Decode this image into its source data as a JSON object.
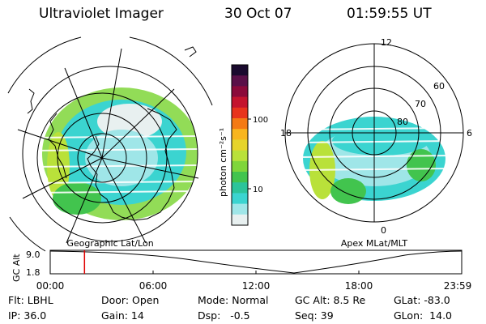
{
  "header": {
    "instrument": "Ultraviolet Imager",
    "date": "30 Oct 07",
    "time": "01:59:55 UT"
  },
  "left_panel": {
    "caption": "Geographic Lat/Lon"
  },
  "right_panel": {
    "caption": "Apex MLat/MLT",
    "mlt_labels": {
      "top": "12",
      "bottom": "0",
      "left": "18",
      "right": "6"
    },
    "lat_labels": [
      "60",
      "70",
      "80"
    ]
  },
  "colorbar": {
    "unit_label": "photon cm⁻²s⁻¹",
    "ticks": [
      "100",
      "10"
    ],
    "colors": [
      "#1a0a2e",
      "#5a1048",
      "#8b0a3a",
      "#c4142e",
      "#e8341c",
      "#f47a14",
      "#f8b51e",
      "#e6d42a",
      "#b9e13a",
      "#7fd63a",
      "#42c44e",
      "#2cc49a",
      "#3bd4d0",
      "#9fe6e8",
      "#e8f0f0"
    ]
  },
  "altitude_strip": {
    "axis_label": "GC Alt",
    "y_ticks": [
      "9.0",
      "1.8"
    ],
    "x_ticks": [
      "00:00",
      "06:00",
      "12:00",
      "18:00",
      "23:59"
    ],
    "current_time_fraction": 0.0833
  },
  "info": {
    "flt": "Flt: LBHL",
    "ip": "IP: 36.0",
    "door": "Door: Open",
    "gain": "Gain: 14",
    "mode": "Mode: Normal",
    "dsp": "Dsp:   -0.5",
    "gcalt": "GC Alt: 8.5 Re",
    "seq": "Seq: 39",
    "glat": "GLat: -83.0",
    "glon": "GLon:  14.0"
  }
}
